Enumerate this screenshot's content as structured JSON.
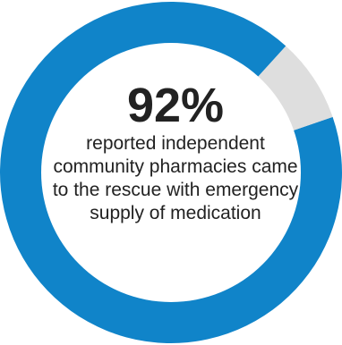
{
  "chart_data": {
    "type": "pie",
    "title": "",
    "slices": [
      {
        "label": "reported",
        "value": 92
      },
      {
        "label": "",
        "value": 8
      }
    ]
  },
  "colors": {
    "primary": "#1084C9",
    "remainder": "#DEDEDE",
    "text": "#222222"
  },
  "headline": "92%",
  "description": "reported independent community pharmacies came to the rescue with emergency supply of medication"
}
